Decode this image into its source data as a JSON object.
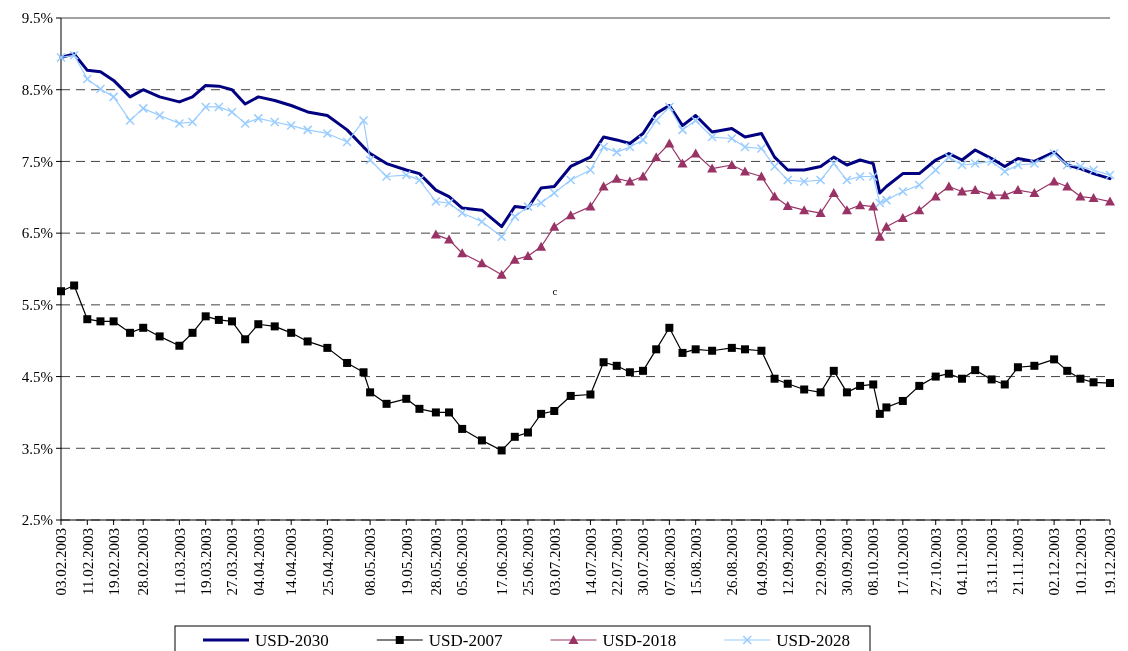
{
  "chart_data": {
    "type": "line",
    "x": [
      "2003-02-03",
      "2003-02-07",
      "2003-02-11",
      "2003-02-15",
      "2003-02-19",
      "2003-02-24",
      "2003-02-28",
      "2003-03-05",
      "2003-03-11",
      "2003-03-15",
      "2003-03-19",
      "2003-03-23",
      "2003-03-27",
      "2003-03-31",
      "2003-04-04",
      "2003-04-09",
      "2003-04-14",
      "2003-04-19",
      "2003-04-25",
      "2003-05-01",
      "2003-05-06",
      "2003-05-08",
      "2003-05-13",
      "2003-05-19",
      "2003-05-23",
      "2003-05-28",
      "2003-06-01",
      "2003-06-05",
      "2003-06-11",
      "2003-06-17",
      "2003-06-21",
      "2003-06-25",
      "2003-06-29",
      "2003-07-03",
      "2003-07-08",
      "2003-07-14",
      "2003-07-18",
      "2003-07-22",
      "2003-07-26",
      "2003-07-30",
      "2003-08-03",
      "2003-08-07",
      "2003-08-11",
      "2003-08-15",
      "2003-08-20",
      "2003-08-26",
      "2003-08-30",
      "2003-09-04",
      "2003-09-08",
      "2003-09-12",
      "2003-09-17",
      "2003-09-22",
      "2003-09-26",
      "2003-09-30",
      "2003-10-04",
      "2003-10-08",
      "2003-10-10",
      "2003-10-12",
      "2003-10-17",
      "2003-10-22",
      "2003-10-27",
      "2003-10-31",
      "2003-11-04",
      "2003-11-08",
      "2003-11-13",
      "2003-11-17",
      "2003-11-21",
      "2003-11-26",
      "2003-12-02",
      "2003-12-06",
      "2003-12-10",
      "2003-12-14",
      "2003-12-19"
    ],
    "series": [
      {
        "name": "USD-2030",
        "color": "#000080",
        "marker": "none",
        "values": [
          8.95,
          9.0,
          8.77,
          8.75,
          8.63,
          8.4,
          8.5,
          8.4,
          8.33,
          8.4,
          8.56,
          8.55,
          8.5,
          8.3,
          8.4,
          8.35,
          8.28,
          8.19,
          8.14,
          7.94,
          7.7,
          7.61,
          7.47,
          7.38,
          7.33,
          7.1,
          7.01,
          6.85,
          6.82,
          6.59,
          6.87,
          6.85,
          7.13,
          7.15,
          7.43,
          7.56,
          7.84,
          7.8,
          7.75,
          7.89,
          8.17,
          8.28,
          8.0,
          8.14,
          7.91,
          7.96,
          7.84,
          7.89,
          7.56,
          7.38,
          7.38,
          7.43,
          7.56,
          7.45,
          7.52,
          7.47,
          7.06,
          7.15,
          7.33,
          7.33,
          7.52,
          7.61,
          7.52,
          7.66,
          7.54,
          7.43,
          7.54,
          7.5,
          7.63,
          7.45,
          7.4,
          7.33,
          7.26
        ]
      },
      {
        "name": "USD-2007",
        "color": "#000000",
        "marker": "square",
        "values": [
          5.69,
          5.77,
          5.3,
          5.27,
          5.27,
          5.11,
          5.18,
          5.06,
          4.93,
          5.11,
          5.34,
          5.29,
          5.27,
          5.02,
          5.23,
          5.2,
          5.11,
          4.99,
          4.9,
          4.69,
          4.56,
          4.28,
          4.12,
          4.19,
          4.05,
          4.0,
          4.0,
          3.77,
          3.61,
          3.47,
          3.66,
          3.72,
          3.98,
          4.02,
          4.23,
          4.25,
          4.7,
          4.65,
          4.56,
          4.58,
          4.88,
          5.18,
          4.83,
          4.88,
          4.86,
          4.9,
          4.88,
          4.86,
          4.47,
          4.4,
          4.32,
          4.28,
          4.58,
          4.28,
          4.37,
          4.39,
          3.98,
          4.07,
          4.16,
          4.37,
          4.5,
          4.54,
          4.47,
          4.59,
          4.46,
          4.39,
          4.63,
          4.65,
          4.74,
          4.58,
          4.47,
          4.42,
          4.41
        ]
      },
      {
        "name": "USD-2018",
        "color": "#993366",
        "marker": "triangle",
        "values": [
          null,
          null,
          null,
          null,
          null,
          null,
          null,
          null,
          null,
          null,
          null,
          null,
          null,
          null,
          null,
          null,
          null,
          null,
          null,
          null,
          null,
          null,
          null,
          null,
          null,
          6.48,
          6.41,
          6.22,
          6.08,
          5.92,
          6.13,
          6.18,
          6.31,
          6.59,
          6.75,
          6.87,
          7.15,
          7.26,
          7.22,
          7.29,
          7.56,
          7.75,
          7.47,
          7.61,
          7.4,
          7.45,
          7.36,
          7.29,
          7.01,
          6.88,
          6.82,
          6.78,
          7.06,
          6.82,
          6.89,
          6.87,
          6.45,
          6.59,
          6.71,
          6.82,
          7.01,
          7.15,
          7.08,
          7.1,
          7.03,
          7.03,
          7.1,
          7.06,
          7.22,
          7.15,
          7.01,
          6.99,
          6.94
        ]
      },
      {
        "name": "USD-2028",
        "color": "#99ccff",
        "marker": "cross",
        "values": [
          8.95,
          8.98,
          8.65,
          8.51,
          8.4,
          8.07,
          8.24,
          8.14,
          8.03,
          8.05,
          8.26,
          8.26,
          8.19,
          8.03,
          8.1,
          8.05,
          8.0,
          7.94,
          7.89,
          7.77,
          8.07,
          7.52,
          7.29,
          7.31,
          7.24,
          6.94,
          6.92,
          6.78,
          6.66,
          6.45,
          6.73,
          6.87,
          6.92,
          7.06,
          7.24,
          7.38,
          7.7,
          7.63,
          7.7,
          7.8,
          8.07,
          8.26,
          7.94,
          8.07,
          7.84,
          7.82,
          7.7,
          7.68,
          7.43,
          7.24,
          7.22,
          7.24,
          7.47,
          7.24,
          7.29,
          7.29,
          6.92,
          6.96,
          7.08,
          7.17,
          7.38,
          7.56,
          7.45,
          7.47,
          7.5,
          7.36,
          7.45,
          7.47,
          7.61,
          7.45,
          7.43,
          7.38,
          7.31
        ]
      }
    ],
    "xlim": [
      "2003-02-03",
      "2003-12-19"
    ],
    "xticks": [
      {
        "value": "2003-02-03",
        "label": "03.02.2003"
      },
      {
        "value": "2003-02-11",
        "label": "11.02.2003"
      },
      {
        "value": "2003-02-19",
        "label": "19.02.2003"
      },
      {
        "value": "2003-02-28",
        "label": "28.02.2003"
      },
      {
        "value": "2003-03-11",
        "label": "11.03.2003"
      },
      {
        "value": "2003-03-19",
        "label": "19.03.2003"
      },
      {
        "value": "2003-03-27",
        "label": "27.03.2003"
      },
      {
        "value": "2003-04-04",
        "label": "04.04.2003"
      },
      {
        "value": "2003-04-14",
        "label": "14.04.2003"
      },
      {
        "value": "2003-04-25",
        "label": "25.04.2003"
      },
      {
        "value": "2003-05-08",
        "label": "08.05.2003"
      },
      {
        "value": "2003-05-19",
        "label": "19.05.2003"
      },
      {
        "value": "2003-05-28",
        "label": "28.05.2003"
      },
      {
        "value": "2003-06-05",
        "label": "05.06.2003"
      },
      {
        "value": "2003-06-17",
        "label": "17.06.2003"
      },
      {
        "value": "2003-06-25",
        "label": "25.06.2003"
      },
      {
        "value": "2003-07-03",
        "label": "03.07.2003"
      },
      {
        "value": "2003-07-14",
        "label": "14.07.2003"
      },
      {
        "value": "2003-07-22",
        "label": "22.07.2003"
      },
      {
        "value": "2003-07-30",
        "label": "30.07.2003"
      },
      {
        "value": "2003-08-07",
        "label": "07.08.2003"
      },
      {
        "value": "2003-08-15",
        "label": "15.08.2003"
      },
      {
        "value": "2003-08-26",
        "label": "26.08.2003"
      },
      {
        "value": "2003-09-04",
        "label": "04.09.2003"
      },
      {
        "value": "2003-09-12",
        "label": "12.09.2003"
      },
      {
        "value": "2003-09-22",
        "label": "22.09.2003"
      },
      {
        "value": "2003-09-30",
        "label": "30.09.2003"
      },
      {
        "value": "2003-10-08",
        "label": "08.10.2003"
      },
      {
        "value": "2003-10-17",
        "label": "17.10.2003"
      },
      {
        "value": "2003-10-27",
        "label": "27.10.2003"
      },
      {
        "value": "2003-11-04",
        "label": "04.11.2003"
      },
      {
        "value": "2003-11-13",
        "label": "13.11.2003"
      },
      {
        "value": "2003-11-21",
        "label": "21.11.2003"
      },
      {
        "value": "2003-12-02",
        "label": "02.12.2003"
      },
      {
        "value": "2003-12-10",
        "label": "10.12.2003"
      },
      {
        "value": "2003-12-19",
        "label": "19.12.2003"
      }
    ],
    "ylim": [
      2.5,
      9.5
    ],
    "yticks": [
      {
        "value": 2.5,
        "label": "2.5%"
      },
      {
        "value": 3.5,
        "label": "3.5%"
      },
      {
        "value": 4.5,
        "label": "4.5%"
      },
      {
        "value": 5.5,
        "label": "5.5%"
      },
      {
        "value": 6.5,
        "label": "6.5%"
      },
      {
        "value": 7.5,
        "label": "7.5%"
      },
      {
        "value": 8.5,
        "label": "8.5%"
      },
      {
        "value": 9.5,
        "label": "9.5%"
      }
    ],
    "grid": "y",
    "line_style": "solid",
    "legend": "bottom",
    "annotations": [
      "c"
    ]
  }
}
